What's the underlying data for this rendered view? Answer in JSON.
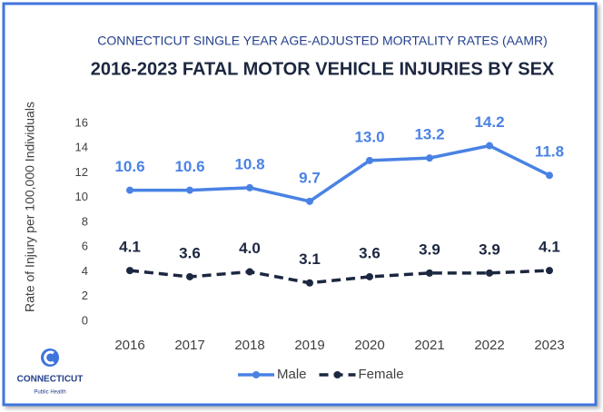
{
  "chart_data": {
    "type": "line",
    "subtitle": "CONNECTICUT SINGLE YEAR AGE-ADJUSTED MORTALITY RATES (AAMR)",
    "title": "2016-2023 FATAL MOTOR VEHICLE INJURIES BY SEX",
    "ylabel": "Rate of Injury per 100,000 Individuals",
    "categories": [
      "2016",
      "2017",
      "2018",
      "2019",
      "2020",
      "2021",
      "2022",
      "2023"
    ],
    "series": [
      {
        "name": "Male",
        "color": "#4a82e4",
        "dashed": false,
        "values": [
          10.6,
          10.6,
          10.8,
          9.7,
          13.0,
          13.2,
          14.2,
          11.8
        ],
        "value_labels": [
          "10.6",
          "10.6",
          "10.8",
          "9.7",
          "13.0",
          "13.2",
          "14.2",
          "11.8"
        ]
      },
      {
        "name": "Female",
        "color": "#1c2740",
        "dashed": true,
        "values": [
          4.1,
          3.6,
          4.0,
          3.1,
          3.6,
          3.9,
          3.9,
          4.1
        ],
        "value_labels": [
          "4.1",
          "3.6",
          "4.0",
          "3.1",
          "3.6",
          "3.9",
          "3.9",
          "4.1"
        ]
      }
    ],
    "ylim": [
      0,
      16
    ],
    "yticks": [
      0,
      2,
      4,
      6,
      8,
      10,
      12,
      14,
      16
    ],
    "grid": false,
    "legend": "bottom",
    "logo": {
      "name": "CONNECTICUT",
      "subname": "Public Health"
    }
  }
}
